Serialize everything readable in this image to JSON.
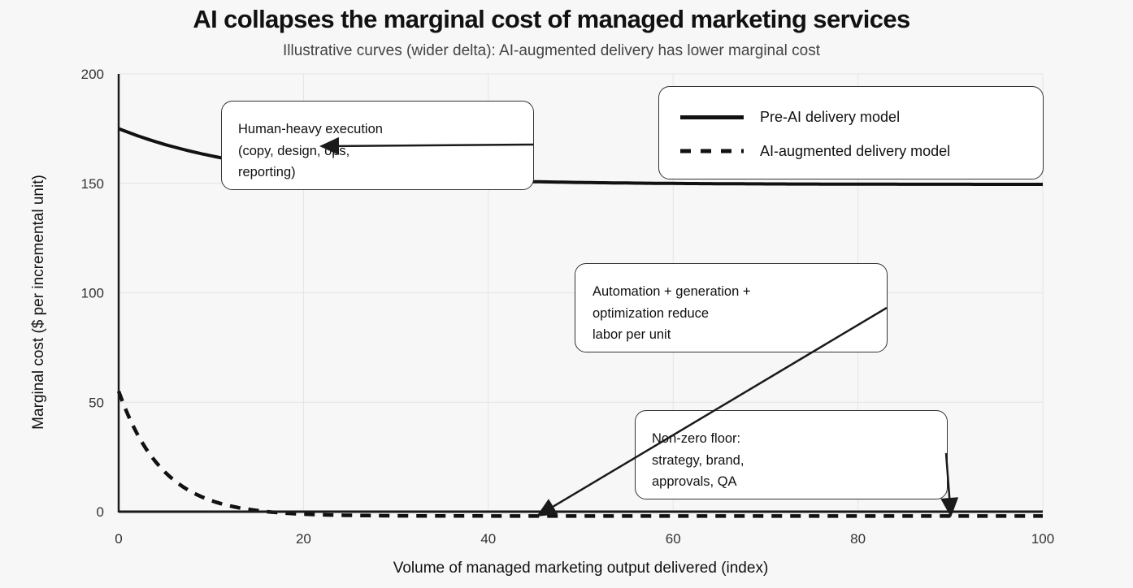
{
  "header": {
    "title": "AI collapses the marginal cost of managed marketing services",
    "subtitle": "Illustrative curves (wider delta): AI-augmented delivery has lower marginal cost"
  },
  "axes": {
    "xlabel": "Volume of managed marketing output delivered (index)",
    "ylabel": "Marginal cost ($ per incremental unit)",
    "xticks": [
      "0",
      "20",
      "40",
      "60",
      "80",
      "100"
    ],
    "yticks": [
      "0",
      "50",
      "100",
      "150",
      "200"
    ]
  },
  "legend": {
    "items": [
      {
        "label": "Pre-AI delivery model",
        "style": "solid"
      },
      {
        "label": "AI-augmented delivery model",
        "style": "dashed"
      }
    ]
  },
  "annotations": [
    {
      "lines": [
        "Human-heavy execution",
        "(copy, design, ops,",
        "reporting)"
      ]
    },
    {
      "lines": [
        "Automation + generation +",
        "optimization reduce",
        "labor per unit"
      ]
    },
    {
      "lines": [
        "Non-zero floor:",
        "strategy, brand,",
        "approvals, QA"
      ]
    }
  ],
  "colors": {
    "background": "#f7f7f7",
    "grid": "#e4e4e4",
    "line": "#111111",
    "axis": "#1a1a1a"
  },
  "chart_data": {
    "type": "line",
    "title": "AI collapses the marginal cost of managed marketing services",
    "subtitle": "Illustrative curves (wider delta): AI-augmented delivery has lower marginal cost",
    "xlabel": "Volume of managed marketing output delivered (index)",
    "ylabel": "Marginal cost ($ per incremental unit)",
    "xlim": [
      0,
      100
    ],
    "ylim": [
      0,
      200
    ],
    "xticks": [
      0,
      20,
      40,
      60,
      80,
      100
    ],
    "yticks": [
      0,
      50,
      100,
      150,
      200
    ],
    "grid": true,
    "legend_position": "upper right",
    "x": [
      0,
      5,
      10,
      15,
      20,
      25,
      30,
      40,
      50,
      60,
      70,
      80,
      90,
      100
    ],
    "series": [
      {
        "name": "Pre-AI delivery model",
        "style": "solid",
        "values": [
          175,
          168.0,
          163.0,
          159.4,
          156.6,
          154.5,
          153.0,
          151.6,
          150.9,
          150.5,
          150.2,
          150.0,
          149.8,
          149.6
        ]
      },
      {
        "name": "AI-augmented delivery model",
        "style": "dashed",
        "values": [
          55,
          19.9,
          5.6,
          -0.2,
          -1.1,
          -1.7,
          -1.9,
          -2.0,
          -2.0,
          -2.0,
          -2.0,
          -2.0,
          -2.0,
          -2.0
        ]
      }
    ],
    "annotations": [
      {
        "text": "Human-heavy execution (copy, design, ops, reporting)",
        "arrow_to": [
          10.8,
          167
        ]
      },
      {
        "text": "Automation + generation + optimization reduce labor per unit",
        "arrow_to": [
          45.2,
          -2
        ]
      },
      {
        "text": "Non-zero floor: strategy, brand, approvals, QA",
        "arrow_to": [
          90,
          -2
        ]
      }
    ]
  }
}
